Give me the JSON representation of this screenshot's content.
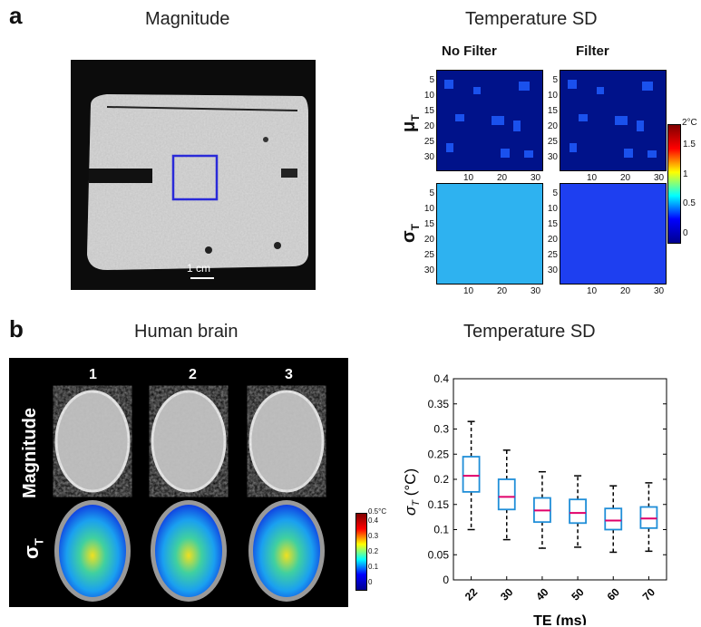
{
  "panel_a": {
    "letter": "a",
    "left_title": "Magnitude",
    "right_title": "Temperature SD",
    "col_no_filter": "No Filter",
    "col_filter": "Filter",
    "row_mu": "μ",
    "row_mu_sub": "T",
    "row_sigma": "σ",
    "row_sigma_sub": "T",
    "scale_bar_label": "1 cm",
    "y_ticks": [
      "5",
      "10",
      "15",
      "20",
      "25",
      "30"
    ],
    "x_ticks": [
      "10",
      "20",
      "30"
    ],
    "colorbar": {
      "top_label": "2°C",
      "ticks": [
        "1.5",
        "1",
        "0.5",
        "0"
      ]
    }
  },
  "panel_b": {
    "letter": "b",
    "left_title": "Human brain",
    "right_title": "Temperature SD",
    "columns": [
      "1",
      "2",
      "3"
    ],
    "row_magnitude": "Magnitude",
    "row_sigma": "σ",
    "row_sigma_sub": "T",
    "colorbar": {
      "top_label": "0.5°C",
      "ticks": [
        "0.4",
        "0.3",
        "0.2",
        "0.1",
        "0"
      ]
    }
  },
  "chart_data": {
    "type": "box",
    "title": "Temperature SD",
    "xlabel": "TE (ms)",
    "ylabel": "σ",
    "ylabel_sub": "T",
    "ylabel_unit": " (°C)",
    "categories": [
      "22",
      "30",
      "40",
      "50",
      "60",
      "70"
    ],
    "ylim": [
      0,
      0.4
    ],
    "y_ticks": [
      "0",
      "0.05",
      "0.1",
      "0.15",
      "0.2",
      "0.25",
      "0.3",
      "0.35",
      "0.4"
    ],
    "boxes": [
      {
        "whisker_low": 0.1,
        "q1": 0.175,
        "median": 0.207,
        "q3": 0.245,
        "whisker_high": 0.315
      },
      {
        "whisker_low": 0.08,
        "q1": 0.14,
        "median": 0.165,
        "q3": 0.2,
        "whisker_high": 0.258
      },
      {
        "whisker_low": 0.063,
        "q1": 0.115,
        "median": 0.138,
        "q3": 0.163,
        "whisker_high": 0.215
      },
      {
        "whisker_low": 0.065,
        "q1": 0.113,
        "median": 0.133,
        "q3": 0.16,
        "whisker_high": 0.207
      },
      {
        "whisker_low": 0.055,
        "q1": 0.1,
        "median": 0.118,
        "q3": 0.142,
        "whisker_high": 0.187
      },
      {
        "whisker_low": 0.057,
        "q1": 0.103,
        "median": 0.122,
        "q3": 0.145,
        "whisker_high": 0.193
      }
    ],
    "colors": {
      "box": "#1f8ed8",
      "median": "#e0006a",
      "whisker": "#000000"
    }
  }
}
